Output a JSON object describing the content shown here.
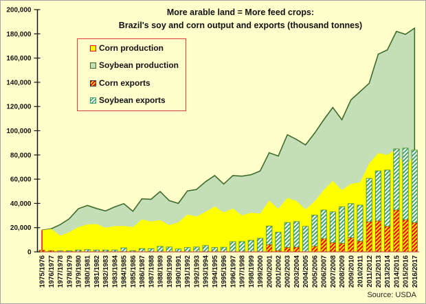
{
  "chart_data": {
    "type": "area",
    "title": "More arable land = More feed crops:",
    "subtitle": "Brazil's soy and corn output and exports (thousand tonnes)",
    "xlabel": "",
    "ylabel": "",
    "ylim": [
      0,
      200000
    ],
    "yticks": [
      0,
      20000,
      40000,
      60000,
      80000,
      100000,
      120000,
      140000,
      160000,
      180000,
      200000
    ],
    "ytick_labels": [
      "0",
      "20,000",
      "40,000",
      "60,000",
      "80,000",
      "100,000",
      "120,000",
      "140,000",
      "160,000",
      "180,000",
      "200,000"
    ],
    "grid": false,
    "legend_position": "top-left",
    "source": "Source: USDA",
    "categories": [
      "1975/1976",
      "1976/1977",
      "1977/1978",
      "1978/1979",
      "1979/1980",
      "1980/1981",
      "1981/1982",
      "1982/1983",
      "1983/1984",
      "1984/1985",
      "1985/1986",
      "1986/1987",
      "1987/1988",
      "1988/1989",
      "1989/1990",
      "1990/1991",
      "1991/1992",
      "1992/1993",
      "1993/1994",
      "1994/1995",
      "1995/1996",
      "1996/1997",
      "1997/1998",
      "1998/1999",
      "1999/2000",
      "2000/2001",
      "2001/2002",
      "2002/2003",
      "2003/2004",
      "2004/2005",
      "2005/2006",
      "2006/2007",
      "2007/2008",
      "2008/2009",
      "2009/2010",
      "2010/2011",
      "2011/2012",
      "2012/2013",
      "2013/2014",
      "2014/2015",
      "2015/2016",
      "2016/2017"
    ],
    "series": [
      {
        "name": "Corn production",
        "kind": "area",
        "color": "#ffff00",
        "edge": "#ff0000",
        "values": [
          17900,
          19000,
          13400,
          16300,
          20400,
          22600,
          23000,
          19800,
          21200,
          21300,
          20400,
          26800,
          25000,
          26200,
          22000,
          24300,
          30800,
          29200,
          33000,
          37400,
          32500,
          35700,
          30100,
          32400,
          31600,
          42300,
          35500,
          44500,
          42000,
          35000,
          41700,
          51000,
          58600,
          51000,
          56100,
          57400,
          73000,
          81500,
          80000,
          85000,
          67000,
          84000
        ]
      },
      {
        "name": "Soybean production",
        "kind": "area",
        "stacked_on": "Corn production",
        "color": "#c4dfb8",
        "edge": "#3d6b2b",
        "totals": [
          17900,
          19000,
          22500,
          27300,
          35600,
          38300,
          35800,
          33800,
          37100,
          39800,
          33500,
          43800,
          43400,
          49800,
          42300,
          40000,
          50300,
          51500,
          57900,
          63000,
          56000,
          63000,
          62500,
          63700,
          66700,
          81800,
          79100,
          96700,
          92800,
          88300,
          98000,
          109000,
          119200,
          109100,
          125500,
          132300,
          139100,
          163200,
          166700,
          182000,
          179600,
          184700
        ]
      },
      {
        "name": "Corn exports",
        "kind": "bar",
        "color": "#ff0000",
        "hatch": "#ffff00",
        "values": [
          1400,
          1000,
          0,
          0,
          0,
          0,
          0,
          0,
          0,
          0,
          0,
          0,
          0,
          0,
          0,
          0,
          0,
          0,
          0,
          0,
          0,
          0,
          0,
          0,
          0,
          5800,
          1000,
          3600,
          3800,
          0,
          4500,
          10800,
          7500,
          7000,
          11600,
          8800,
          24800,
          25500,
          21000,
          34500,
          26500,
          24000
        ]
      },
      {
        "name": "Soybean exports",
        "kind": "bar",
        "stacked_on": "Corn exports",
        "color": "#ffffff",
        "hatch": "#2e9e5e",
        "totals": [
          1400,
          1000,
          800,
          800,
          1500,
          1800,
          1500,
          1500,
          1500,
          3300,
          1000,
          2700,
          2600,
          4500,
          4000,
          2400,
          3600,
          4000,
          5200,
          3600,
          3800,
          8400,
          8500,
          9500,
          11200,
          21300,
          16200,
          24200,
          25000,
          21000,
          30300,
          34500,
          33000,
          37200,
          39800,
          38500,
          60600,
          66800,
          67500,
          85000,
          85600,
          84000
        ]
      }
    ]
  }
}
